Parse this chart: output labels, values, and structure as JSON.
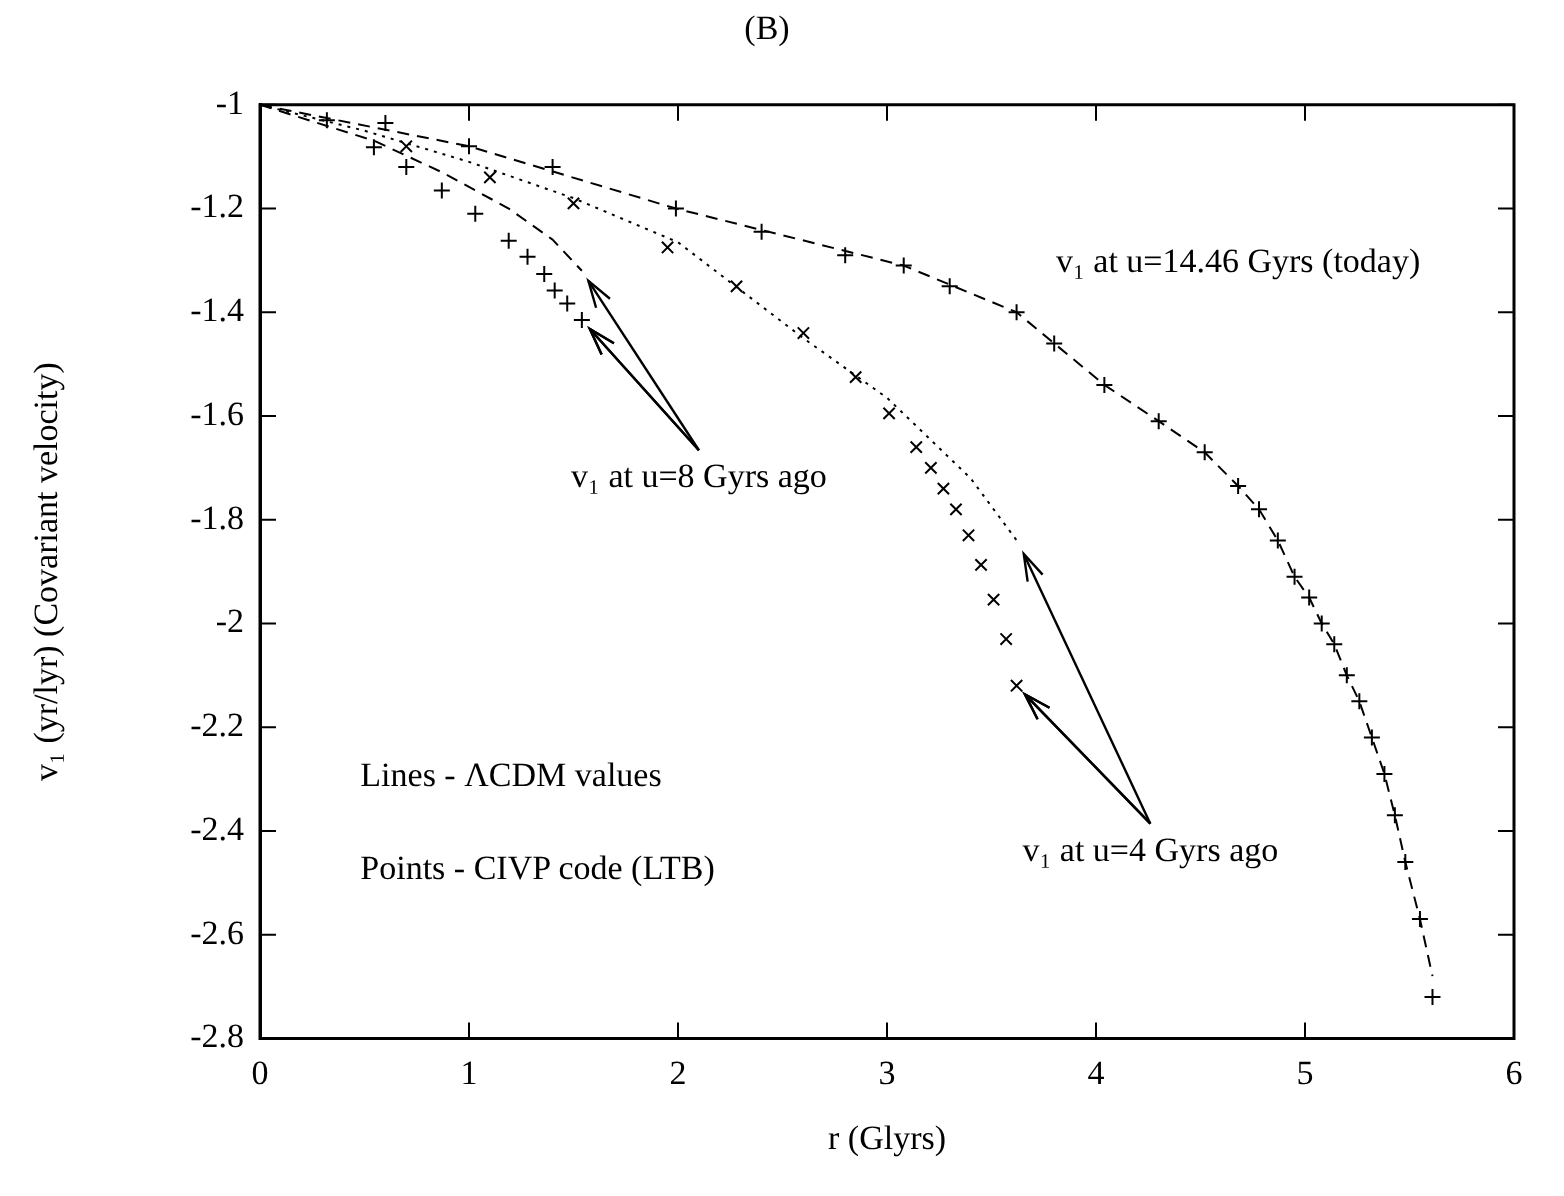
{
  "chart_data": {
    "type": "line",
    "title": "(B)",
    "xlabel": "r (Glyrs)",
    "ylabel": "v₁ (yr/lyr) (Covariant velocity)",
    "xlim": [
      0,
      6
    ],
    "xticks": [
      0,
      1,
      2,
      3,
      4,
      5,
      6
    ],
    "ylim": [
      -2.8,
      -1
    ],
    "yticks": [
      -1,
      -1.2,
      -1.4,
      -1.6,
      -1.8,
      -2,
      -2.2,
      -2.4,
      -2.6,
      -2.8
    ],
    "grid": false,
    "legend": false,
    "series": [
      {
        "type": "line",
        "color": "#000000",
        "line_style": "dashed",
        "marker": "none",
        "x": [
          0,
          1.0,
          1.99,
          3.08,
          3.62,
          4.04,
          4.3,
          4.52,
          4.68,
          4.78,
          4.87,
          4.95,
          5.02,
          5.08,
          5.14,
          5.2,
          5.26,
          5.32,
          5.38,
          5.43,
          5.48,
          5.55,
          5.61
        ],
        "values": [
          -1,
          -1.08,
          -1.2,
          -1.31,
          -1.4,
          -1.54,
          -1.61,
          -1.67,
          -1.735,
          -1.78,
          -1.84,
          -1.91,
          -1.95,
          -2.0,
          -2.04,
          -2.1,
          -2.15,
          -2.22,
          -2.29,
          -2.37,
          -2.46,
          -2.57,
          -2.68
        ]
      },
      {
        "type": "scatter",
        "color": "#000000",
        "marker": "cross",
        "x": [
          0.6,
          1.0,
          1.4,
          1.99,
          2.4,
          2.8,
          3.08,
          3.3,
          3.62,
          3.8,
          4.04,
          4.3,
          4.52,
          4.68,
          4.78,
          4.87,
          4.95,
          5.02,
          5.08,
          5.14,
          5.2,
          5.26,
          5.32,
          5.38,
          5.43,
          5.48,
          5.55,
          5.61
        ],
        "values": [
          -1.035,
          -1.08,
          -1.12,
          -1.2,
          -1.245,
          -1.29,
          -1.31,
          -1.35,
          -1.4,
          -1.46,
          -1.54,
          -1.61,
          -1.67,
          -1.735,
          -1.78,
          -1.84,
          -1.91,
          -1.95,
          -2.0,
          -2.04,
          -2.1,
          -2.15,
          -2.22,
          -2.29,
          -2.37,
          -2.46,
          -2.57,
          -2.72
        ]
      },
      {
        "type": "line",
        "color": "#000000",
        "line_style": "dotted",
        "marker": "none",
        "x": [
          0,
          0.5,
          1.0,
          1.5,
          2.0,
          2.6,
          3.0,
          3.4,
          3.63
        ],
        "values": [
          -1,
          -1.05,
          -1.11,
          -1.18,
          -1.265,
          -1.45,
          -1.565,
          -1.72,
          -1.845
        ]
      },
      {
        "type": "scatter",
        "color": "#000000",
        "marker": "x",
        "x": [
          0.7,
          1.1,
          1.5,
          1.95,
          2.28,
          2.6,
          2.85,
          3.01,
          3.14,
          3.21,
          3.27,
          3.33,
          3.39,
          3.45,
          3.51,
          3.57,
          3.62
        ],
        "values": [
          -1.08,
          -1.14,
          -1.19,
          -1.275,
          -1.35,
          -1.44,
          -1.525,
          -1.595,
          -1.66,
          -1.7,
          -1.74,
          -1.78,
          -1.83,
          -1.887,
          -1.954,
          -2.03,
          -2.12
        ]
      },
      {
        "type": "line",
        "color": "#000000",
        "line_style": "dashed",
        "marker": "none",
        "x": [
          0,
          0.55,
          0.87,
          1.19,
          1.4,
          1.54
        ],
        "values": [
          -1,
          -1.07,
          -1.13,
          -1.2,
          -1.26,
          -1.32
        ]
      },
      {
        "type": "scatter",
        "color": "#000000",
        "marker": "cross",
        "x": [
          0.32,
          0.545,
          0.7,
          0.87,
          1.03,
          1.19,
          1.28,
          1.36,
          1.41,
          1.47,
          1.54
        ],
        "values": [
          -1.03,
          -1.082,
          -1.12,
          -1.165,
          -1.21,
          -1.262,
          -1.293,
          -1.326,
          -1.358,
          -1.383,
          -1.415
        ]
      }
    ],
    "annotations": [
      "v₁ at u=14.46 Gyrs (today)",
      {
        "text": "v₁ at u=8 Gyrs ago",
        "x": 1.54,
        "y": -1.415
      },
      {
        "text": "v₁ at u=4 Gyrs ago",
        "x": 3.62,
        "y": -2.12
      },
      "Lines - ΛCDM values",
      "Points - CIVP code (LTB)"
    ]
  }
}
